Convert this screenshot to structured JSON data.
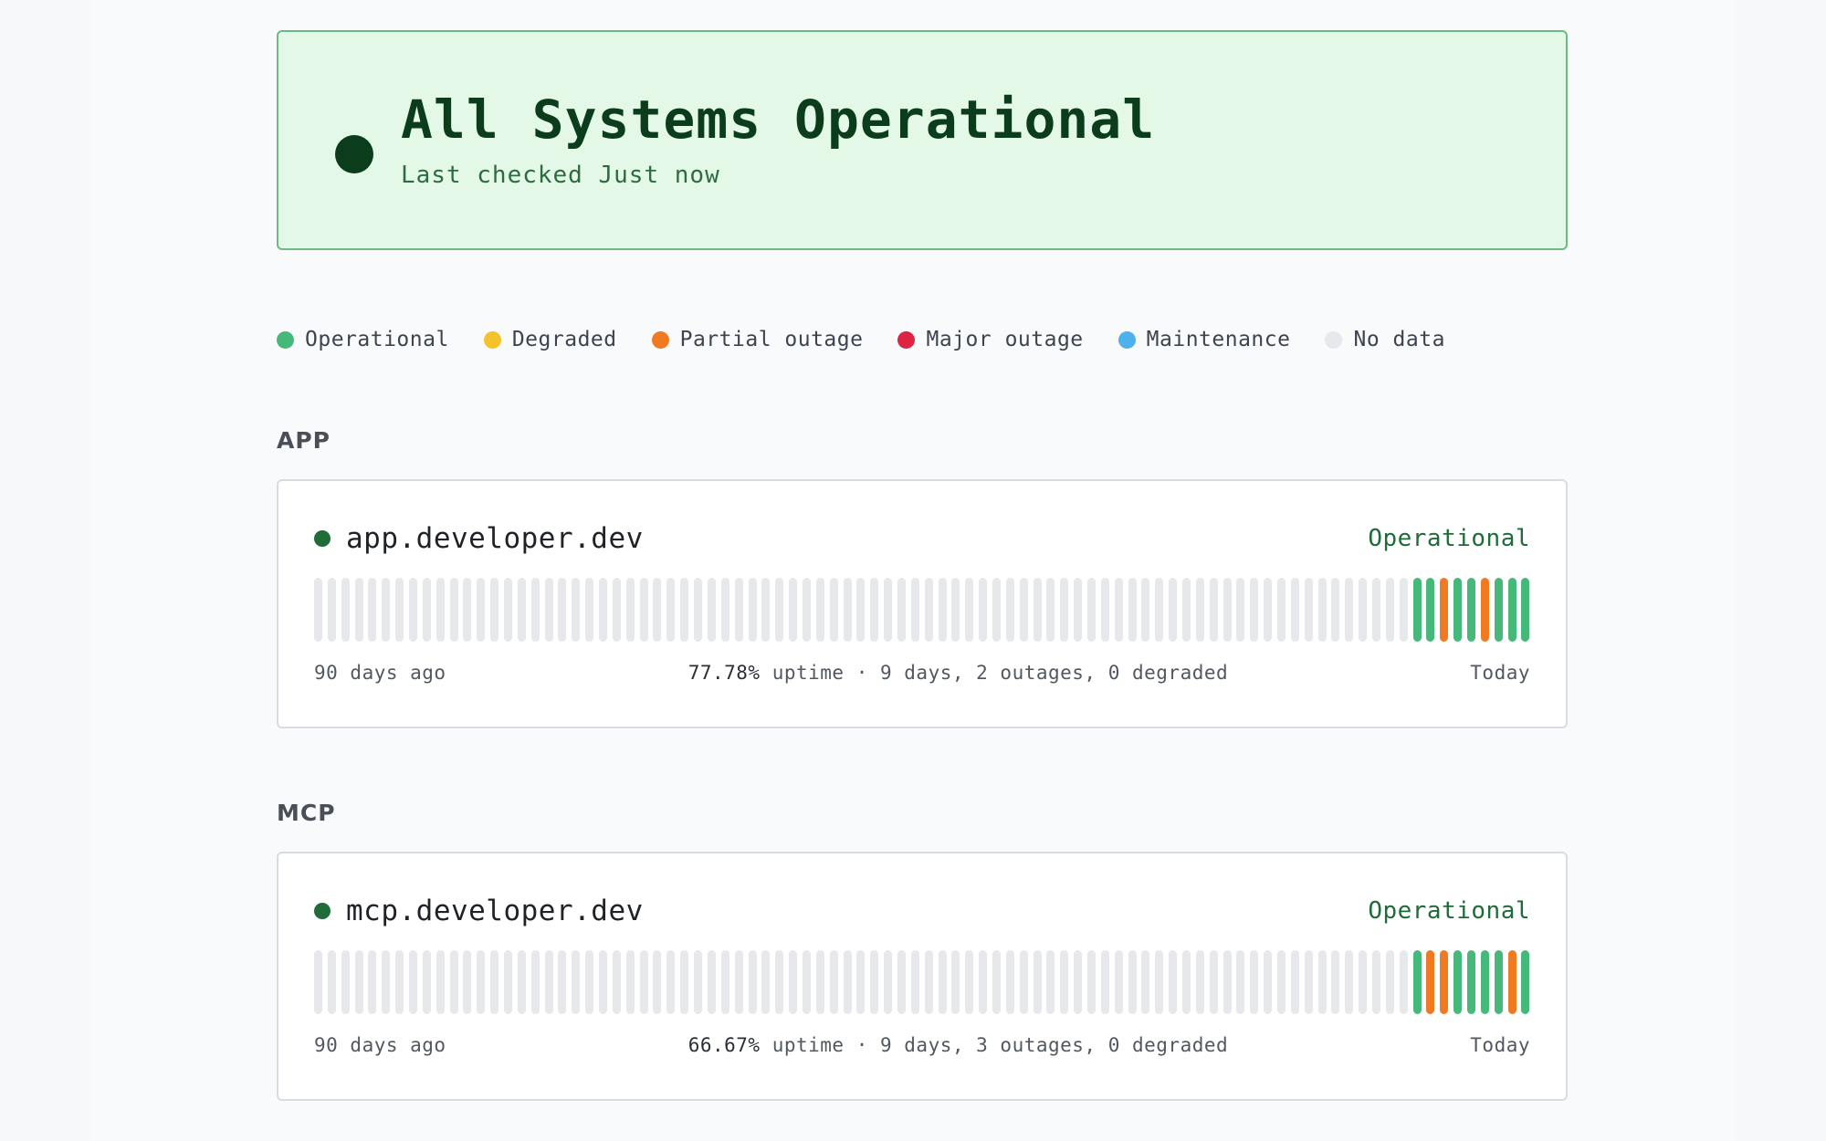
{
  "colors": {
    "operational": "#46b97a",
    "degraded": "#f4c22b",
    "partial": "#ef7a22",
    "major": "#dd2442",
    "maintenance": "#4fb1ec",
    "nodata": "#e6e8ec"
  },
  "hero": {
    "title": "All Systems Operational",
    "subtitle": "Last checked Just now",
    "icon": "status-dot-icon"
  },
  "legend": [
    {
      "label": "Operational",
      "color": "#46b97a"
    },
    {
      "label": "Degraded",
      "color": "#f4c22b"
    },
    {
      "label": "Partial outage",
      "color": "#ef7a22"
    },
    {
      "label": "Major outage",
      "color": "#dd2442"
    },
    {
      "label": "Maintenance",
      "color": "#4fb1ec"
    },
    {
      "label": "No data",
      "color": "#e6e8ec"
    }
  ],
  "groups": [
    {
      "title": "APP",
      "service": {
        "name": "app.developer.dev",
        "status": "Operational",
        "left_label": "90 days ago",
        "uptime_pct": "77.78%",
        "uptime_rest": " uptime · 9 days, 2 outages, 0 degraded",
        "right_label": "Today",
        "days": [
          "nodata",
          "nodata",
          "nodata",
          "nodata",
          "nodata",
          "nodata",
          "nodata",
          "nodata",
          "nodata",
          "nodata",
          "nodata",
          "nodata",
          "nodata",
          "nodata",
          "nodata",
          "nodata",
          "nodata",
          "nodata",
          "nodata",
          "nodata",
          "nodata",
          "nodata",
          "nodata",
          "nodata",
          "nodata",
          "nodata",
          "nodata",
          "nodata",
          "nodata",
          "nodata",
          "nodata",
          "nodata",
          "nodata",
          "nodata",
          "nodata",
          "nodata",
          "nodata",
          "nodata",
          "nodata",
          "nodata",
          "nodata",
          "nodata",
          "nodata",
          "nodata",
          "nodata",
          "nodata",
          "nodata",
          "nodata",
          "nodata",
          "nodata",
          "nodata",
          "nodata",
          "nodata",
          "nodata",
          "nodata",
          "nodata",
          "nodata",
          "nodata",
          "nodata",
          "nodata",
          "nodata",
          "nodata",
          "nodata",
          "nodata",
          "nodata",
          "nodata",
          "nodata",
          "nodata",
          "nodata",
          "nodata",
          "nodata",
          "nodata",
          "nodata",
          "nodata",
          "nodata",
          "nodata",
          "nodata",
          "nodata",
          "nodata",
          "nodata",
          "nodata",
          "operational",
          "operational",
          "partial",
          "operational",
          "operational",
          "partial",
          "operational",
          "operational",
          "operational"
        ]
      }
    },
    {
      "title": "MCP",
      "service": {
        "name": "mcp.developer.dev",
        "status": "Operational",
        "left_label": "90 days ago",
        "uptime_pct": "66.67%",
        "uptime_rest": " uptime · 9 days, 3 outages, 0 degraded",
        "right_label": "Today",
        "days": [
          "nodata",
          "nodata",
          "nodata",
          "nodata",
          "nodata",
          "nodata",
          "nodata",
          "nodata",
          "nodata",
          "nodata",
          "nodata",
          "nodata",
          "nodata",
          "nodata",
          "nodata",
          "nodata",
          "nodata",
          "nodata",
          "nodata",
          "nodata",
          "nodata",
          "nodata",
          "nodata",
          "nodata",
          "nodata",
          "nodata",
          "nodata",
          "nodata",
          "nodata",
          "nodata",
          "nodata",
          "nodata",
          "nodata",
          "nodata",
          "nodata",
          "nodata",
          "nodata",
          "nodata",
          "nodata",
          "nodata",
          "nodata",
          "nodata",
          "nodata",
          "nodata",
          "nodata",
          "nodata",
          "nodata",
          "nodata",
          "nodata",
          "nodata",
          "nodata",
          "nodata",
          "nodata",
          "nodata",
          "nodata",
          "nodata",
          "nodata",
          "nodata",
          "nodata",
          "nodata",
          "nodata",
          "nodata",
          "nodata",
          "nodata",
          "nodata",
          "nodata",
          "nodata",
          "nodata",
          "nodata",
          "nodata",
          "nodata",
          "nodata",
          "nodata",
          "nodata",
          "nodata",
          "nodata",
          "nodata",
          "nodata",
          "nodata",
          "nodata",
          "nodata",
          "operational",
          "partial",
          "partial",
          "operational",
          "operational",
          "operational",
          "operational",
          "partial",
          "operational"
        ]
      }
    }
  ]
}
